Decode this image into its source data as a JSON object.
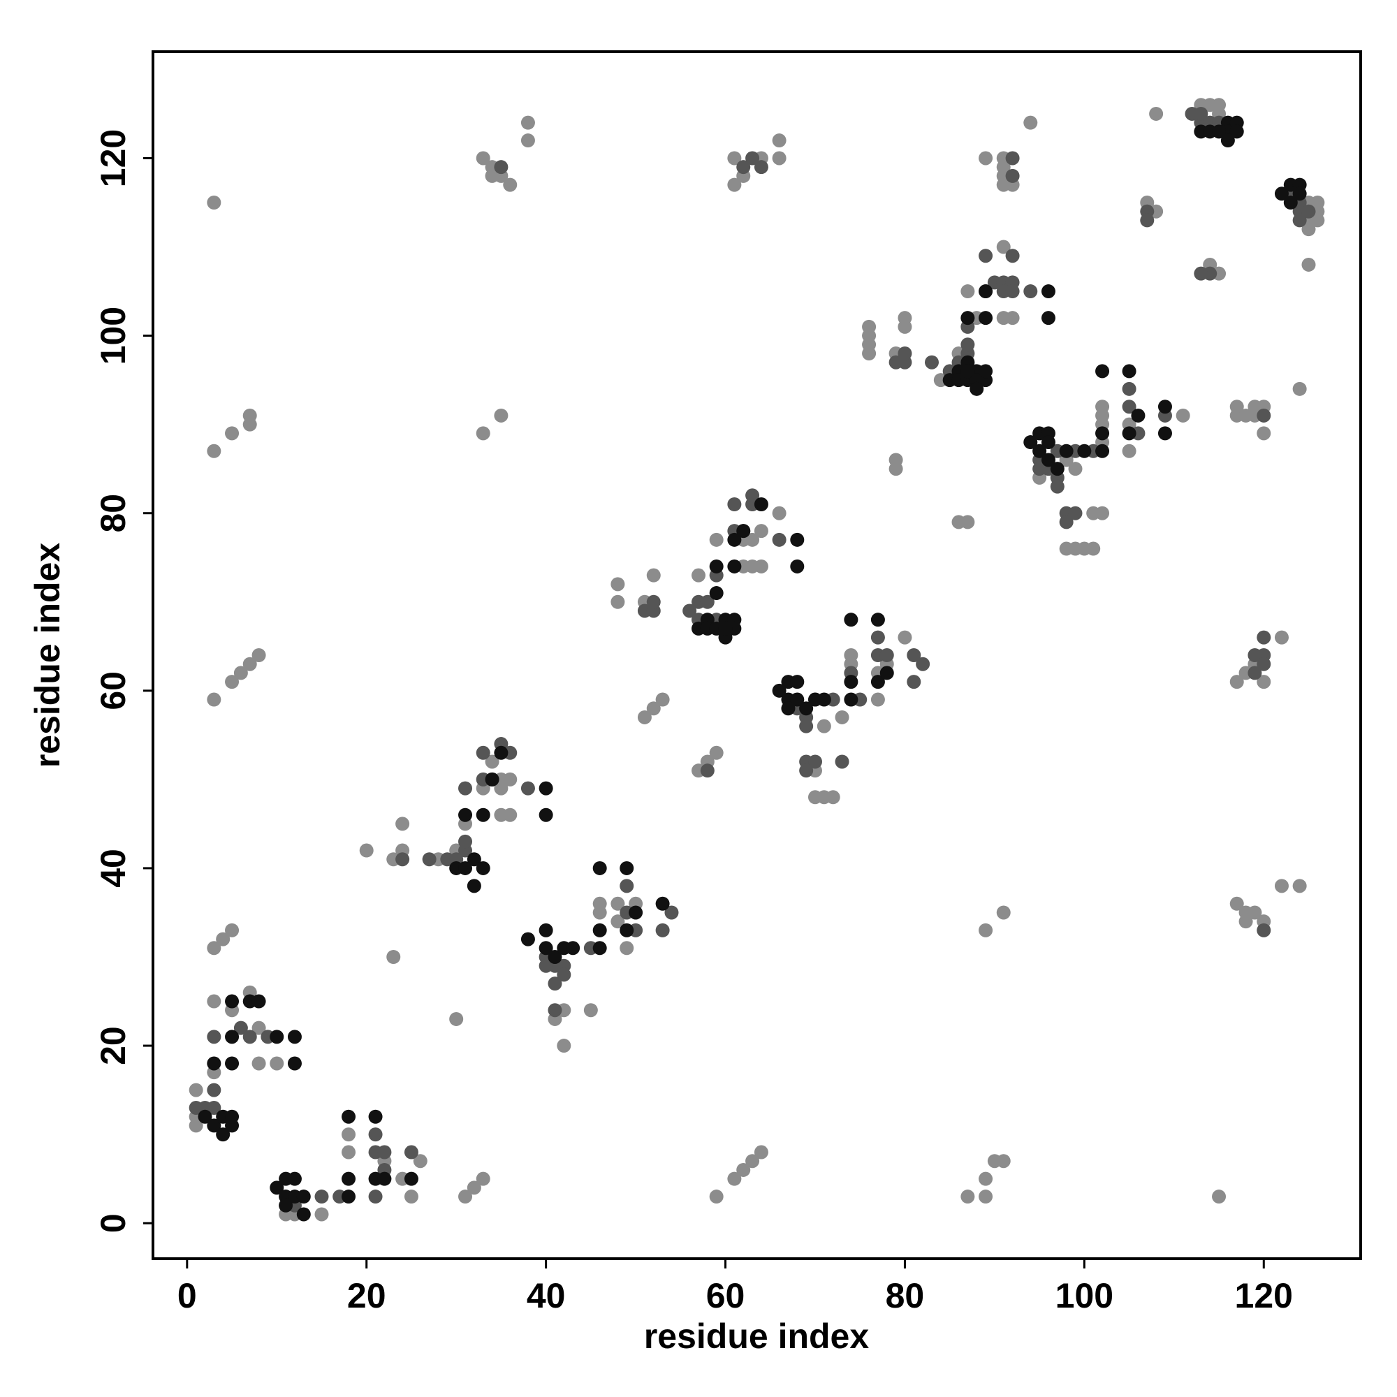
{
  "chart_data": {
    "type": "scatter",
    "xlabel": "residue index",
    "ylabel": "residue index",
    "xlim": [
      -3.8,
      130.8
    ],
    "ylim": [
      -4,
      132
    ],
    "xticks": [
      0,
      20,
      40,
      60,
      80,
      100,
      120
    ],
    "yticks": [
      0,
      20,
      40,
      60,
      80,
      100,
      120
    ],
    "series": [
      {
        "color": "#8c8c8c",
        "x": [
          1,
          1,
          1,
          3,
          3,
          3,
          4,
          5,
          3,
          3,
          5,
          7,
          7,
          3,
          5,
          6,
          7,
          8,
          5,
          7,
          8,
          8,
          10,
          11,
          12,
          15,
          18,
          18,
          22,
          23,
          24,
          25,
          26,
          24,
          24,
          23,
          20,
          30,
          31,
          32,
          33,
          35,
          33,
          28,
          30,
          31,
          33,
          35,
          35,
          35,
          36,
          36,
          34,
          33,
          34,
          35,
          36,
          38,
          38,
          34,
          41,
          42,
          42,
          45,
          46,
          46,
          49,
          50,
          48,
          48,
          48,
          48,
          51,
          52,
          51,
          52,
          53,
          57,
          58,
          59,
          57,
          59,
          62,
          63,
          64,
          64,
          63,
          62,
          66,
          61,
          61,
          62,
          64,
          66,
          66,
          59,
          61,
          62,
          63,
          64,
          70,
          70,
          71,
          72,
          73,
          74,
          74,
          77,
          77,
          78,
          80,
          71,
          76,
          76,
          76,
          76,
          79,
          80,
          80,
          79,
          79,
          84,
          86,
          87,
          87,
          88,
          89,
          91,
          91,
          91,
          91,
          92,
          91,
          91,
          92,
          94,
          89,
          87,
          89,
          90,
          91,
          89,
          91,
          86,
          95,
          98,
          99,
          98,
          99,
          100,
          101,
          101,
          102,
          102,
          102,
          102,
          102,
          105,
          105,
          111,
          107,
          108,
          108,
          113,
          114,
          115,
          115,
          115,
          114,
          117,
          117,
          118,
          119,
          119,
          120,
          120,
          117,
          118,
          119,
          120,
          122,
          124,
          125,
          125,
          126,
          126,
          125,
          117,
          118,
          118,
          119,
          120,
          122,
          124,
          115,
          126,
          125
        ],
        "y": [
          11,
          12,
          15,
          17,
          25,
          31,
          32,
          33,
          115,
          87,
          89,
          90,
          91,
          59,
          61,
          62,
          63,
          64,
          24,
          26,
          22,
          18,
          18,
          1,
          1,
          1,
          8,
          10,
          7,
          30,
          5,
          3,
          7,
          45,
          42,
          41,
          42,
          23,
          3,
          4,
          89,
          91,
          5,
          41,
          42,
          45,
          49,
          49,
          50,
          46,
          46,
          50,
          52,
          120,
          118,
          118,
          117,
          124,
          122,
          119,
          23,
          24,
          20,
          24,
          36,
          35,
          31,
          36,
          36,
          34,
          72,
          70,
          70,
          73,
          57,
          58,
          59,
          51,
          52,
          53,
          73,
          77,
          77,
          77,
          78,
          74,
          74,
          74,
          80,
          120,
          117,
          118,
          120,
          122,
          120,
          3,
          5,
          6,
          7,
          8,
          51,
          48,
          48,
          48,
          57,
          63,
          64,
          59,
          62,
          63,
          66,
          56,
          101,
          100,
          99,
          98,
          98,
          101,
          102,
          86,
          85,
          95,
          79,
          79,
          105,
          102,
          120,
          120,
          119,
          118,
          117,
          117,
          110,
          102,
          102,
          124,
          3,
          3,
          5,
          7,
          7,
          33,
          35,
          98,
          84,
          86,
          85,
          76,
          76,
          76,
          76,
          80,
          80,
          88,
          90,
          91,
          92,
          87,
          90,
          91,
          115,
          114,
          125,
          126,
          126,
          126,
          125,
          107,
          108,
          92,
          91,
          91,
          91,
          92,
          92,
          89,
          61,
          62,
          63,
          61,
          66,
          94,
          108,
          112,
          114,
          115,
          113,
          36,
          35,
          34,
          35,
          34,
          38,
          38,
          3,
          113,
          115
        ]
      },
      {
        "color": "#555555",
        "x": [
          2,
          3,
          1,
          3,
          3,
          6,
          7,
          9,
          12,
          15,
          17,
          21,
          21,
          22,
          21,
          25,
          22,
          24,
          29,
          30,
          31,
          31,
          31,
          33,
          34,
          35,
          36,
          38,
          33,
          27,
          35,
          40,
          41,
          41,
          42,
          41,
          42,
          45,
          49,
          49,
          50,
          53,
          54,
          40,
          51,
          52,
          52,
          56,
          57,
          57,
          58,
          59,
          58,
          59,
          61,
          62,
          63,
          63,
          66,
          61,
          62,
          63,
          64,
          68,
          69,
          69,
          69,
          70,
          70,
          72,
          73,
          75,
          77,
          77,
          78,
          81,
          81,
          82,
          74,
          69,
          79,
          80,
          80,
          83,
          85,
          86,
          87,
          87,
          89,
          89,
          90,
          91,
          92,
          92,
          91,
          92,
          94,
          92,
          92,
          87,
          95,
          96,
          97,
          97,
          97,
          99,
          98,
          98,
          99,
          101,
          105,
          105,
          106,
          109,
          95,
          107,
          107,
          112,
          113,
          114,
          115,
          114,
          113,
          119,
          120,
          120,
          119,
          120,
          120,
          120,
          123,
          124,
          124,
          124,
          125,
          113
        ],
        "y": [
          13,
          13,
          13,
          15,
          21,
          22,
          21,
          21,
          2,
          3,
          3,
          10,
          8,
          8,
          3,
          8,
          6,
          41,
          41,
          41,
          42,
          43,
          49,
          50,
          50,
          54,
          53,
          49,
          53,
          41,
          119,
          30,
          29,
          27,
          29,
          24,
          28,
          31,
          38,
          35,
          33,
          33,
          35,
          29,
          69,
          69,
          70,
          69,
          70,
          68,
          70,
          68,
          51,
          73,
          81,
          78,
          81,
          82,
          77,
          78,
          119,
          120,
          119,
          58,
          57,
          56,
          52,
          52,
          59,
          59,
          52,
          59,
          66,
          64,
          64,
          64,
          61,
          63,
          62,
          51,
          97,
          97,
          98,
          97,
          96,
          97,
          98,
          101,
          109,
          105,
          106,
          106,
          109,
          106,
          105,
          105,
          105,
          120,
          118,
          99,
          86,
          85,
          87,
          84,
          83,
          87,
          80,
          79,
          80,
          87,
          94,
          92,
          89,
          91,
          85,
          114,
          113,
          125,
          124,
          124,
          124,
          107,
          107,
          64,
          64,
          66,
          62,
          63,
          91,
          33,
          116,
          115,
          114,
          113,
          114,
          125
        ]
      },
      {
        "color": "#111111",
        "x": [
          2,
          3,
          4,
          4,
          5,
          5,
          3,
          5,
          5,
          5,
          7,
          8,
          10,
          12,
          12,
          10,
          11,
          12,
          11,
          11,
          12,
          13,
          13,
          18,
          21,
          18,
          18,
          21,
          22,
          25,
          30,
          31,
          32,
          33,
          32,
          31,
          33,
          35,
          40,
          40,
          34,
          38,
          40,
          40,
          41,
          42,
          46,
          46,
          46,
          49,
          49,
          50,
          53,
          43,
          57,
          58,
          58,
          59,
          59,
          59,
          60,
          60,
          61,
          61,
          61,
          61,
          62,
          64,
          68,
          68,
          60,
          66,
          67,
          67,
          68,
          68,
          69,
          70,
          71,
          67,
          74,
          77,
          74,
          74,
          77,
          78,
          85,
          86,
          86,
          87,
          87,
          88,
          88,
          89,
          89,
          88,
          87,
          89,
          89,
          96,
          96,
          87,
          94,
          95,
          95,
          96,
          96,
          97,
          98,
          100,
          102,
          102,
          102,
          105,
          105,
          106,
          109,
          109,
          96,
          116,
          116,
          117,
          117,
          116,
          113,
          114,
          115,
          122,
          123,
          124,
          123,
          124
        ],
        "y": [
          12,
          11,
          10,
          12,
          11,
          12,
          18,
          18,
          21,
          25,
          25,
          25,
          21,
          21,
          18,
          4,
          5,
          5,
          3,
          2,
          3,
          1,
          3,
          12,
          12,
          5,
          3,
          5,
          5,
          5,
          40,
          40,
          41,
          40,
          38,
          46,
          46,
          53,
          49,
          46,
          50,
          32,
          31,
          33,
          30,
          31,
          40,
          33,
          31,
          40,
          33,
          35,
          36,
          31,
          67,
          68,
          67,
          71,
          74,
          67,
          68,
          66,
          68,
          67,
          77,
          74,
          78,
          81,
          77,
          74,
          67,
          60,
          61,
          59,
          61,
          59,
          58,
          59,
          59,
          58,
          68,
          68,
          59,
          61,
          61,
          62,
          95,
          96,
          95,
          95,
          97,
          96,
          95,
          95,
          96,
          94,
          102,
          102,
          105,
          105,
          102,
          96,
          88,
          87,
          89,
          89,
          86,
          85,
          87,
          87,
          96,
          89,
          87,
          96,
          89,
          91,
          92,
          89,
          88,
          124,
          123,
          124,
          123,
          122,
          123,
          123,
          123,
          116,
          117,
          117,
          115,
          116
        ]
      }
    ]
  }
}
